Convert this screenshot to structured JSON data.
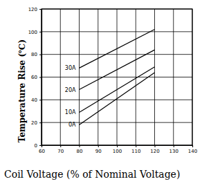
{
  "chart_data": {
    "type": "line",
    "x_label": "Coil Voltage (% of Nominal Voltage)",
    "y_label": "Temperature Rise (℃)",
    "x": [
      80,
      120
    ],
    "series": [
      {
        "name": "30A",
        "color": "#000000",
        "values": [
          68,
          102
        ]
      },
      {
        "name": "20A",
        "color": "#000000",
        "values": [
          49,
          84
        ]
      },
      {
        "name": "10A",
        "color": "#000000",
        "values": [
          29,
          69
        ]
      },
      {
        "name": "0A",
        "color": "#000000",
        "values": [
          18,
          64
        ]
      }
    ],
    "xlim": [
      60,
      140
    ],
    "xticks": [
      60,
      70,
      80,
      90,
      100,
      110,
      120,
      130,
      140
    ],
    "ylim": [
      0,
      120
    ],
    "yticks": [
      0,
      20,
      40,
      60,
      80,
      100,
      120
    ],
    "grid": true
  }
}
